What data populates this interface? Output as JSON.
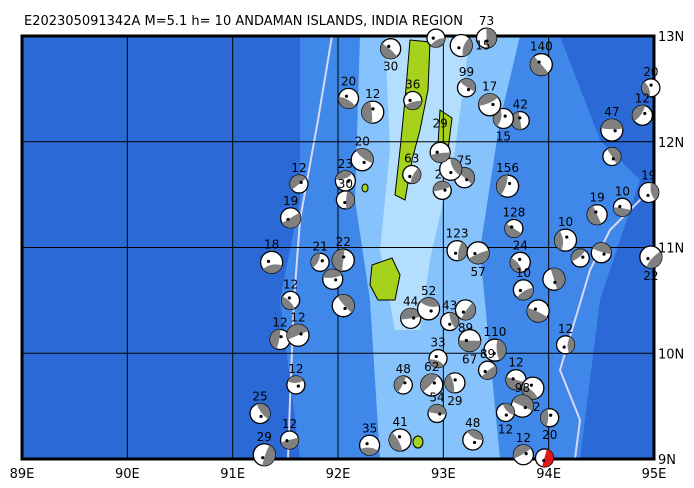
{
  "title": "E202305091342A M=5.1 h= 10 ANDAMAN ISLANDS, INDIA REGION",
  "map": {
    "lon_range": [
      89,
      95
    ],
    "lat_range": [
      9,
      13
    ],
    "lon_labels": [
      "89E",
      "90E",
      "91E",
      "92E",
      "93E",
      "94E",
      "95E"
    ],
    "lat_labels": [
      "13N",
      "12N",
      "11N",
      "10N",
      "9N"
    ],
    "colors": {
      "deep": "#2b6ad6",
      "mid": "#3f88ea",
      "shallow": "#86c2fb",
      "shelf": "#b4defe",
      "land": "#a6d21c",
      "trench": "#d8d8f4",
      "mechanism": "#808080",
      "main_event": "#e01818"
    }
  },
  "events": [
    {
      "lon": 92.93,
      "lat": 12.98,
      "depth": ""
    },
    {
      "lon": 92.1,
      "lat": 12.41,
      "depth": "20"
    },
    {
      "lon": 92.33,
      "lat": 12.28,
      "depth": "12"
    },
    {
      "lon": 91.63,
      "lat": 11.6,
      "depth": "12"
    },
    {
      "lon": 92.07,
      "lat": 11.63,
      "depth": "23"
    },
    {
      "lon": 92.23,
      "lat": 11.83,
      "depth": "20"
    },
    {
      "lon": 92.07,
      "lat": 11.45,
      "depth": "30"
    },
    {
      "lon": 91.55,
      "lat": 11.28,
      "depth": "19"
    },
    {
      "lon": 91.37,
      "lat": 10.86,
      "depth": "18"
    },
    {
      "lon": 91.55,
      "lat": 10.5,
      "depth": "12"
    },
    {
      "lon": 91.45,
      "lat": 10.13,
      "depth": "12"
    },
    {
      "lon": 91.62,
      "lat": 10.17,
      "depth": "12"
    },
    {
      "lon": 91.6,
      "lat": 9.7,
      "depth": "12"
    },
    {
      "lon": 91.26,
      "lat": 9.43,
      "depth": "25"
    },
    {
      "lon": 91.3,
      "lat": 9.04,
      "depth": "29"
    },
    {
      "lon": 91.54,
      "lat": 9.18,
      "depth": "12"
    },
    {
      "lon": 92.3,
      "lat": 9.13,
      "depth": "35"
    },
    {
      "lon": 92.59,
      "lat": 9.18,
      "depth": "41"
    },
    {
      "lon": 92.62,
      "lat": 9.7,
      "depth": "48"
    },
    {
      "lon": 92.69,
      "lat": 10.33,
      "depth": "44"
    },
    {
      "lon": 92.86,
      "lat": 10.42,
      "depth": "52"
    },
    {
      "lon": 93.06,
      "lat": 10.3,
      "depth": "43"
    },
    {
      "lon": 93.21,
      "lat": 10.41,
      "depth": "89"
    },
    {
      "lon": 93.25,
      "lat": 10.12,
      "depth": "67"
    },
    {
      "lon": 92.95,
      "lat": 9.95,
      "depth": "33"
    },
    {
      "lon": 93.11,
      "lat": 9.72,
      "depth": "29"
    },
    {
      "lon": 92.89,
      "lat": 9.7,
      "depth": "62"
    },
    {
      "lon": 92.94,
      "lat": 9.43,
      "depth": "54"
    },
    {
      "lon": 93.28,
      "lat": 9.18,
      "depth": "48"
    },
    {
      "lon": 93.49,
      "lat": 10.03,
      "depth": "110"
    },
    {
      "lon": 93.42,
      "lat": 9.84,
      "depth": "89"
    },
    {
      "lon": 93.69,
      "lat": 9.75,
      "depth": "12"
    },
    {
      "lon": 93.85,
      "lat": 9.67,
      "depth": "12"
    },
    {
      "lon": 94.01,
      "lat": 9.39,
      "depth": "20"
    },
    {
      "lon": 93.76,
      "lat": 9.04,
      "depth": "12"
    },
    {
      "lon": 93.75,
      "lat": 9.5,
      "depth": "98"
    },
    {
      "lon": 93.59,
      "lat": 9.44,
      "depth": "12"
    },
    {
      "lon": 93.13,
      "lat": 10.97,
      "depth": "123"
    },
    {
      "lon": 93.33,
      "lat": 10.95,
      "depth": "57"
    },
    {
      "lon": 93.67,
      "lat": 11.18,
      "depth": "128"
    },
    {
      "lon": 93.73,
      "lat": 10.86,
      "depth": "24"
    },
    {
      "lon": 93.61,
      "lat": 11.58,
      "depth": "156"
    },
    {
      "lon": 92.99,
      "lat": 11.54,
      "depth": "27"
    },
    {
      "lon": 93.2,
      "lat": 11.66,
      "depth": "75"
    },
    {
      "lon": 93.07,
      "lat": 11.74,
      "depth": "17"
    },
    {
      "lon": 92.7,
      "lat": 11.69,
      "depth": "63"
    },
    {
      "lon": 92.97,
      "lat": 11.9,
      "depth": "29"
    },
    {
      "lon": 93.93,
      "lat": 12.73,
      "depth": "140"
    },
    {
      "lon": 94.97,
      "lat": 12.51,
      "depth": "20"
    },
    {
      "lon": 94.89,
      "lat": 12.25,
      "depth": "12"
    },
    {
      "lon": 94.6,
      "lat": 12.11,
      "depth": "47"
    },
    {
      "lon": 94.6,
      "lat": 11.86,
      "depth": ""
    },
    {
      "lon": 94.95,
      "lat": 11.52,
      "depth": "19"
    },
    {
      "lon": 94.97,
      "lat": 10.91,
      "depth": "22"
    },
    {
      "lon": 94.7,
      "lat": 11.38,
      "depth": "10"
    },
    {
      "lon": 94.46,
      "lat": 11.31,
      "depth": "19"
    },
    {
      "lon": 94.16,
      "lat": 11.07,
      "depth": "10"
    },
    {
      "lon": 94.3,
      "lat": 10.9,
      "depth": ""
    },
    {
      "lon": 94.5,
      "lat": 10.95,
      "depth": ""
    },
    {
      "lon": 94.05,
      "lat": 10.7,
      "depth": ""
    },
    {
      "lon": 94.16,
      "lat": 10.08,
      "depth": "12"
    },
    {
      "lon": 93.76,
      "lat": 10.6,
      "depth": "10"
    },
    {
      "lon": 93.9,
      "lat": 10.4,
      "depth": ""
    },
    {
      "lon": 93.73,
      "lat": 12.2,
      "depth": "42"
    },
    {
      "lon": 93.57,
      "lat": 12.22,
      "depth": "15"
    },
    {
      "lon": 93.44,
      "lat": 12.35,
      "depth": "17"
    },
    {
      "lon": 93.22,
      "lat": 12.51,
      "depth": "99"
    },
    {
      "lon": 93.41,
      "lat": 12.98,
      "depth": "73"
    },
    {
      "lon": 93.17,
      "lat": 12.91,
      "depth": "15"
    },
    {
      "lon": 92.71,
      "lat": 12.39,
      "depth": "36"
    },
    {
      "lon": 92.5,
      "lat": 12.88,
      "depth": "30"
    },
    {
      "lon": 92.05,
      "lat": 10.88,
      "depth": "22"
    },
    {
      "lon": 91.83,
      "lat": 10.86,
      "depth": "21"
    },
    {
      "lon": 91.95,
      "lat": 10.7,
      "depth": ""
    },
    {
      "lon": 92.05,
      "lat": 10.45,
      "depth": ""
    },
    {
      "lon": 93.96,
      "lat": 9.01,
      "depth": "",
      "main": true
    }
  ]
}
